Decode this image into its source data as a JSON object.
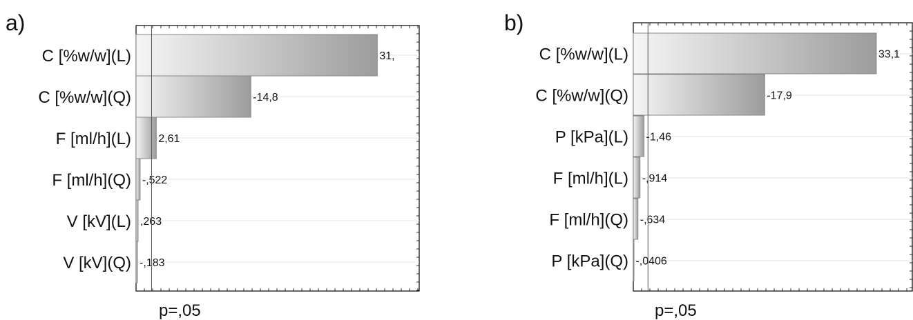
{
  "colors": {
    "bar_light": "#f4f4f4",
    "bar_dark": "#a0a0a0",
    "bar_stroke": "#888888",
    "frame": "#000000",
    "grid": "#e6e6e6",
    "ref_line": "#555555"
  },
  "chart_data": [
    {
      "type": "bar",
      "orientation": "horizontal",
      "panel": "a)",
      "categories": [
        "C [%w/w](L)",
        "C [%w/w](Q)",
        "F [ml/h](L)",
        "F [ml/h](Q)",
        "V [kV](L)",
        "V [kV](Q)"
      ],
      "values": [
        31.1,
        14.8,
        2.61,
        0.522,
        0.263,
        0.183
      ],
      "value_labels": [
        "31,",
        "-14,8",
        "2,61",
        "-,522",
        ",263",
        "-,183"
      ],
      "reference_line": {
        "label": "p=,05",
        "value": 2.0
      },
      "xlim": [
        0,
        36.5
      ],
      "grid": true
    },
    {
      "type": "bar",
      "orientation": "horizontal",
      "panel": "b)",
      "categories": [
        "C [%w/w](L)",
        "C [%w/w](Q)",
        "P [kPa](L)",
        "F [ml/h](L)",
        "F [ml/h](Q)",
        "P [kPa](Q)"
      ],
      "values": [
        33.1,
        17.9,
        1.46,
        0.914,
        0.634,
        0.0406
      ],
      "value_labels": [
        "33,1",
        "-17,9",
        "-1,46",
        "-,914",
        "-,634",
        "-,0406"
      ],
      "reference_line": {
        "label": "p=,05",
        "value": 2.0
      },
      "xlim": [
        0,
        38.0
      ],
      "grid": true
    }
  ]
}
